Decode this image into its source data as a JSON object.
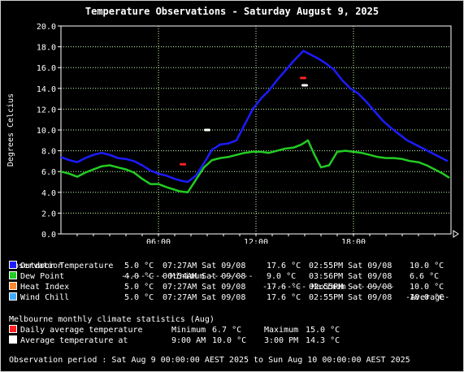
{
  "title": "Temperature Observations - Saturday August 9, 2025",
  "chart_data": {
    "type": "line",
    "ylabel": "Degrees Celcius",
    "ylim": [
      0,
      20
    ],
    "y_ticks": [
      "0.0",
      "2.0",
      "4.0",
      "6.0",
      "8.0",
      "10.0",
      "12.0",
      "14.0",
      "16.0",
      "18.0",
      "20.0"
    ],
    "x_ticks": [
      {
        "hour": 6,
        "label": "06:00"
      },
      {
        "hour": 12,
        "label": "12:00"
      },
      {
        "hour": 18,
        "label": "18:00"
      }
    ],
    "xlim_hours": [
      0,
      24
    ],
    "grid": true,
    "series": [
      {
        "name": "Outdoor Temperature",
        "color": "#1c1cff",
        "x": [
          0,
          0.5,
          1,
          1.5,
          2,
          2.5,
          3,
          3.5,
          4,
          4.5,
          5,
          5.5,
          6,
          6.5,
          7,
          7.45,
          7.8,
          8.3,
          8.8,
          9.3,
          9.8,
          10.3,
          10.8,
          11.3,
          11.8,
          12.3,
          12.8,
          13.3,
          13.8,
          14.3,
          14.6,
          14.92,
          15.3,
          15.8,
          16.3,
          16.8,
          17.3,
          17.8,
          18.3,
          18.8,
          19.3,
          19.8,
          20.3,
          20.8,
          21.3,
          21.8,
          22.3,
          22.8,
          23.3,
          23.8
        ],
        "y": [
          7.4,
          7.1,
          6.9,
          7.3,
          7.6,
          7.8,
          7.6,
          7.3,
          7.2,
          7.0,
          6.6,
          6.1,
          5.8,
          5.6,
          5.3,
          5.1,
          5.0,
          5.6,
          6.8,
          8.1,
          8.6,
          8.7,
          9.0,
          10.5,
          12.0,
          13.0,
          13.8,
          14.8,
          15.7,
          16.6,
          17.1,
          17.6,
          17.3,
          16.9,
          16.4,
          15.8,
          14.8,
          14.0,
          13.5,
          12.7,
          11.8,
          10.9,
          10.2,
          9.6,
          9.0,
          8.6,
          8.2,
          7.8,
          7.4,
          7.0
        ]
      },
      {
        "name": "Dew Point",
        "color": "#22cc22",
        "x": [
          0,
          0.5,
          1,
          1.5,
          2,
          2.5,
          3,
          3.5,
          4,
          4.5,
          5,
          5.5,
          6,
          6.5,
          6.9,
          7.3,
          7.8,
          8.3,
          8.8,
          9.3,
          9.8,
          10.3,
          10.8,
          11.3,
          11.8,
          12.3,
          12.8,
          13.3,
          13.8,
          14.3,
          14.8,
          15.2,
          15.6,
          16.0,
          16.5,
          17.0,
          17.5,
          18.0,
          18.5,
          19.0,
          19.5,
          20.0,
          20.5,
          21.0,
          21.5,
          22.0,
          22.5,
          23.0,
          23.5,
          23.9
        ],
        "y": [
          6.0,
          5.8,
          5.5,
          5.9,
          6.2,
          6.5,
          6.6,
          6.4,
          6.2,
          5.9,
          5.3,
          4.8,
          4.8,
          4.5,
          4.3,
          4.1,
          4.0,
          5.2,
          6.4,
          7.1,
          7.3,
          7.4,
          7.6,
          7.8,
          7.9,
          7.9,
          7.8,
          8.0,
          8.2,
          8.3,
          8.6,
          9.0,
          7.6,
          6.4,
          6.6,
          7.9,
          8.0,
          7.9,
          7.8,
          7.6,
          7.4,
          7.3,
          7.3,
          7.2,
          7.0,
          6.9,
          6.6,
          6.2,
          5.8,
          5.4
        ]
      }
    ],
    "markers": [
      {
        "name": "Daily average temperature",
        "color": "#ff2222",
        "points": [
          {
            "hour": 7.5,
            "value": 6.7
          },
          {
            "hour": 14.9,
            "value": 15.0
          }
        ]
      },
      {
        "name": "Average temperature at",
        "color": "#ffffff",
        "points": [
          {
            "hour": 9.0,
            "value": 10.0
          },
          {
            "hour": 15.0,
            "value": 14.3
          }
        ]
      }
    ]
  },
  "legend": {
    "headers": {
      "label": "Observation",
      "min": "--------- Minimum ---------",
      "max": "--------- Maximum ---------",
      "avg": "-Average-"
    },
    "rows": [
      {
        "name": "Outdoor Temperature",
        "color": "#1c1cff",
        "min": "5.0 °C",
        "min_time": "07:27AM Sat 09/08",
        "max": "17.6 °C",
        "max_time": "02:55PM Sat 09/08",
        "avg": "10.0 °C"
      },
      {
        "name": "Dew Point",
        "color": "#22cc22",
        "min": "4.0 °C",
        "min_time": "06:54AM Sat 09/08",
        "max": "9.0 °C",
        "max_time": "03:56PM Sat 09/08",
        "avg": "6.6 °C"
      },
      {
        "name": "Heat Index",
        "color": "#ff8833",
        "min": "5.0 °C",
        "min_time": "07:27AM Sat 09/08",
        "max": "17.6 °C",
        "max_time": "02:55PM Sat 09/08",
        "avg": "10.0 °C"
      },
      {
        "name": "Wind Chill",
        "color": "#44aaff",
        "min": "5.0 °C",
        "min_time": "07:27AM Sat 09/08",
        "max": "17.6 °C",
        "max_time": "02:55PM Sat 09/08",
        "avg": "10.0 °C"
      }
    ]
  },
  "climate": {
    "title": "Melbourne monthly climate statistics (Aug)",
    "rows": [
      {
        "name": "Daily average temperature",
        "color": "#ff2222",
        "label1": "Minimum",
        "val1": "6.7 °C",
        "label2": "Maximum",
        "val2": "15.0 °C"
      },
      {
        "name": "Average temperature at",
        "color": "#ffffff",
        "label1": "9:00 AM",
        "val1": "10.0 °C",
        "label2": "3:00 PM",
        "val2": "14.3 °C"
      }
    ]
  },
  "footer": "Observation period : Sat Aug 9 00:00:00 AEST 2025 to Sun Aug 10 00:00:00 AEST 2025"
}
